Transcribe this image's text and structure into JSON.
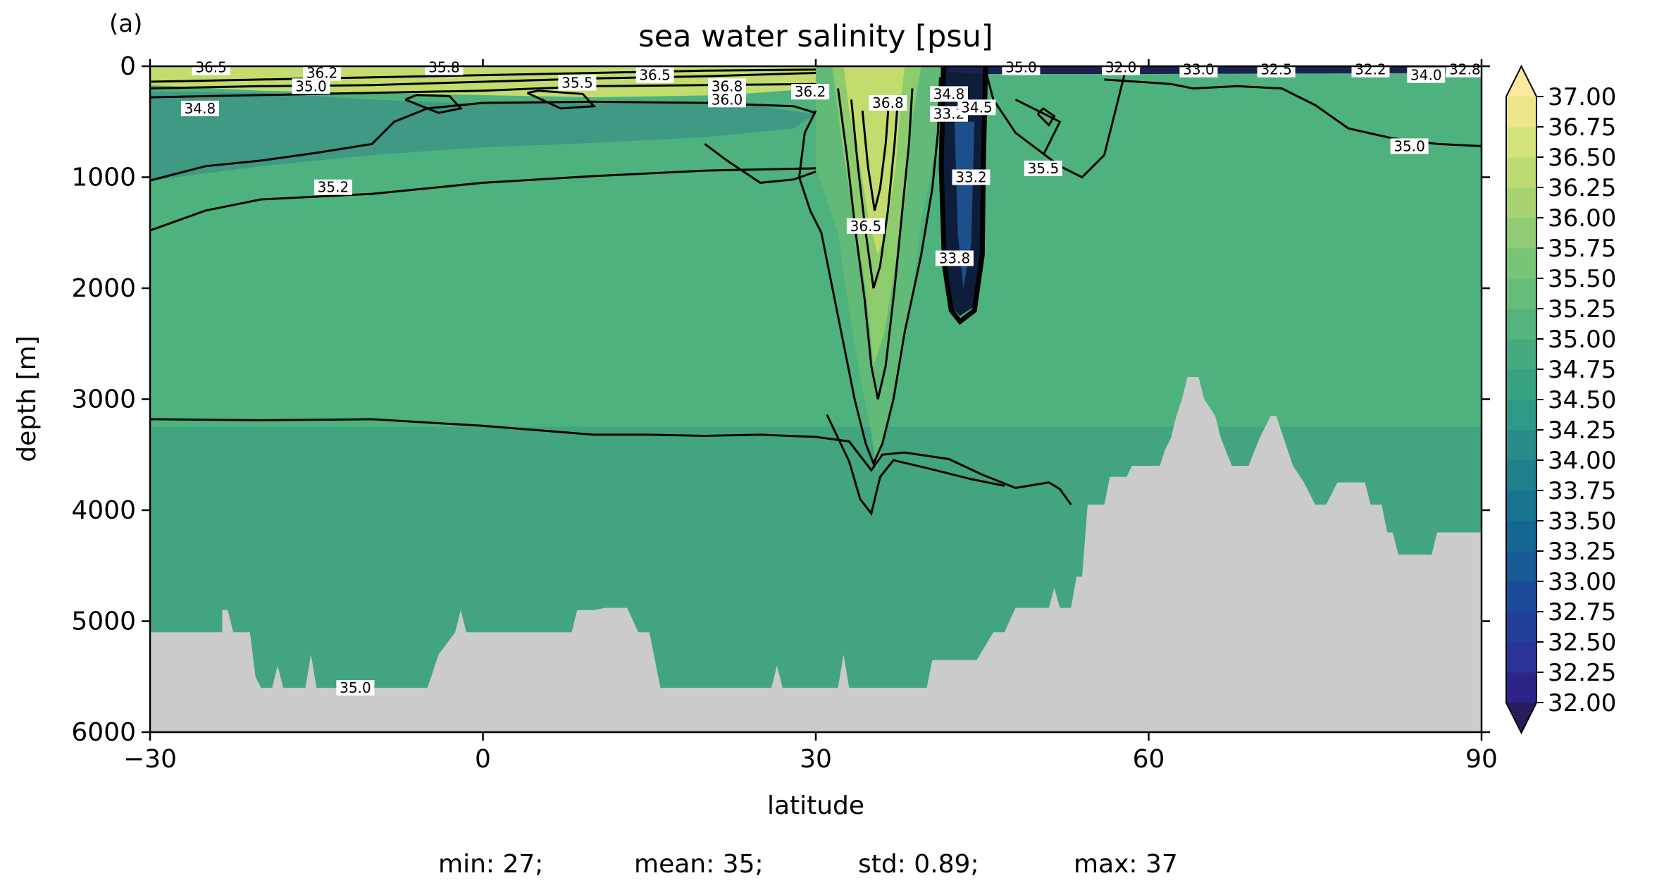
{
  "panel_label": "(a)",
  "stats_line": {
    "min": "min: 27;",
    "mean": "mean: 35;",
    "std": "std: 0.89;",
    "max": "max: 37"
  },
  "chart_data": {
    "type": "heatmap",
    "title": "sea water salinity [psu]",
    "xlabel": "latitude",
    "ylabel": "depth [m]",
    "xlim": [
      -30,
      90
    ],
    "ylim": [
      6000,
      0
    ],
    "y_inverted": true,
    "x_ticks": [
      "−30",
      "0",
      "30",
      "60",
      "90"
    ],
    "x_tick_values": [
      -30,
      0,
      30,
      60,
      90
    ],
    "y_ticks": [
      "0",
      "1000",
      "2000",
      "3000",
      "4000",
      "5000",
      "6000"
    ],
    "y_tick_values": [
      0,
      1000,
      2000,
      3000,
      4000,
      5000,
      6000
    ],
    "colorbar": {
      "levels": [
        32.0,
        32.25,
        32.5,
        32.75,
        33.0,
        33.25,
        33.5,
        33.75,
        34.0,
        34.25,
        34.5,
        34.75,
        35.0,
        35.25,
        35.5,
        35.75,
        36.0,
        36.25,
        36.5,
        36.75,
        37.0
      ],
      "tick_labels": [
        "32.00",
        "32.25",
        "32.50",
        "32.75",
        "33.00",
        "33.25",
        "33.50",
        "33.75",
        "34.00",
        "34.25",
        "34.50",
        "34.75",
        "35.00",
        "35.25",
        "35.50",
        "35.75",
        "36.00",
        "36.25",
        "36.50",
        "36.75",
        "37.00"
      ],
      "extend": "both",
      "colors": [
        "#2a1b5e",
        "#2c2486",
        "#2a3399",
        "#223f9a",
        "#1b4b98",
        "#165a96",
        "#146793",
        "#187490",
        "#1f808c",
        "#278c89",
        "#2f9886",
        "#36a282",
        "#45ab7f",
        "#55b47c",
        "#66bd79",
        "#79c577",
        "#8fcc74",
        "#a6d36f",
        "#bddb72",
        "#d5e37d",
        "#ede68b",
        "#fbe99d"
      ],
      "ocean_fill_colors": {
        "deep": "#42a57f",
        "abyssal": "#45a580",
        "mid": "#4eb27e",
        "intermediate": "#3f9983",
        "upper": "#62ba79",
        "med_outflow": "#8ccc6c",
        "surface_high": "#c3dc6e",
        "dilute": "#1d4f8a"
      },
      "land_color": "#cbcbcb"
    },
    "contour_labels": [
      {
        "text": "36.5",
        "lat": -24.5,
        "depth": 10
      },
      {
        "text": "36.2",
        "lat": -14.5,
        "depth": 60
      },
      {
        "text": "35.0",
        "lat": -15.5,
        "depth": 180
      },
      {
        "text": "34.8",
        "lat": -25.5,
        "depth": 380
      },
      {
        "text": "35.8",
        "lat": -3.5,
        "depth": 10
      },
      {
        "text": "35.5",
        "lat": 8.5,
        "depth": 150
      },
      {
        "text": "36.5",
        "lat": 15.5,
        "depth": 80
      },
      {
        "text": "36.8",
        "lat": 22.0,
        "depth": 180
      },
      {
        "text": "36.0",
        "lat": 22.0,
        "depth": 300
      },
      {
        "text": "36.2",
        "lat": 29.5,
        "depth": 230
      },
      {
        "text": "36.8",
        "lat": 36.5,
        "depth": 330
      },
      {
        "text": "34.8",
        "lat": 42.0,
        "depth": 250
      },
      {
        "text": "33.2",
        "lat": 42.0,
        "depth": 430
      },
      {
        "text": "34.5",
        "lat": 44.5,
        "depth": 370
      },
      {
        "text": "33.2",
        "lat": 44.0,
        "depth": 1000
      },
      {
        "text": "33.8",
        "lat": 42.5,
        "depth": 1730
      },
      {
        "text": "36.5",
        "lat": 34.5,
        "depth": 1440
      },
      {
        "text": "35.5",
        "lat": 50.5,
        "depth": 920
      },
      {
        "text": "35.0",
        "lat": 48.5,
        "depth": 10
      },
      {
        "text": "32.0",
        "lat": 57.5,
        "depth": 10
      },
      {
        "text": "33.0",
        "lat": 64.5,
        "depth": 30
      },
      {
        "text": "32.5",
        "lat": 71.5,
        "depth": 30
      },
      {
        "text": "32.2",
        "lat": 80.0,
        "depth": 30
      },
      {
        "text": "34.0",
        "lat": 85.0,
        "depth": 80
      },
      {
        "text": "32.8",
        "lat": 88.5,
        "depth": 30
      },
      {
        "text": "35.2",
        "lat": -13.5,
        "depth": 1090
      },
      {
        "text": "35.0",
        "lat": 83.5,
        "depth": 720
      },
      {
        "text": "35.0",
        "lat": -11.5,
        "depth": 5600
      }
    ]
  }
}
